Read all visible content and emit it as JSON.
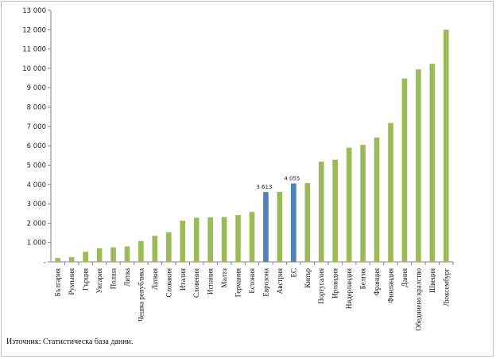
{
  "chart_data": {
    "type": "bar",
    "categories": [
      "България",
      "Румъния",
      "Гърция",
      "Унгария",
      "Полша",
      "Литва",
      "Чешка република",
      "Латвия",
      "Словакия",
      "Италия",
      "Словения",
      "Испания",
      "Малта",
      "Германия",
      "Естония",
      "Еврозона",
      "Австрия",
      "ЕС",
      "Кипър",
      "Португалия",
      "Ирландия",
      "Нидерландия",
      "Белгия",
      "Франция",
      "Финландия",
      "Дания",
      "Обединено кралство",
      "Швеция",
      "Люксембург"
    ],
    "values": [
      200,
      250,
      520,
      700,
      750,
      800,
      1080,
      1350,
      1530,
      2130,
      2280,
      2300,
      2320,
      2420,
      2580,
      3613,
      3620,
      4055,
      4080,
      5180,
      5280,
      5900,
      6050,
      6430,
      7180,
      9480,
      9950,
      10240,
      12000
    ],
    "highlight": [
      "Еврозона",
      "ЕС"
    ],
    "data_labels": [
      {
        "category": "Еврозона",
        "text": "3 613"
      },
      {
        "category": "ЕС",
        "text": "4 055"
      }
    ],
    "yticks": [
      "-",
      "1 000",
      "2 000",
      "3 000",
      "4 000",
      "5 000",
      "6 000",
      "7 000",
      "8 000",
      "9 000",
      "10 000",
      "11 000",
      "12 000",
      "13 000"
    ],
    "ylim": [
      0,
      13000
    ],
    "grid": false,
    "legend": "none",
    "colors": {
      "default": "#9bbb59",
      "highlight": "#4f81bd",
      "axis": "#868686"
    }
  },
  "source_note": "Източник: Статистическа база данни."
}
